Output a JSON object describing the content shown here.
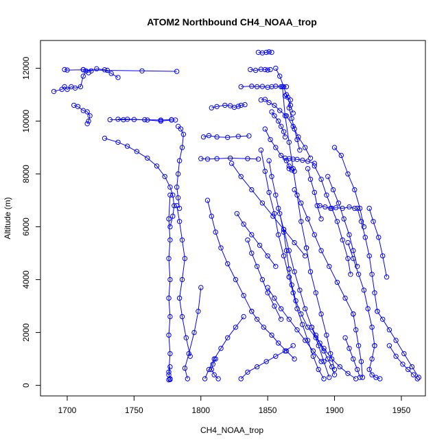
{
  "chart_data": {
    "type": "line",
    "title": "ATOM2 Northbound CH4_NOAA_trop",
    "xlabel": "CH4_NOAA_trop",
    "ylabel": "Altitude (m)",
    "xlim": [
      1680,
      1968
    ],
    "ylim": [
      -400,
      13050
    ],
    "xticks": [
      1700,
      1750,
      1800,
      1850,
      1900,
      1950
    ],
    "yticks": [
      0,
      2000,
      4000,
      6000,
      8000,
      10000,
      12000
    ],
    "xtick_labels": [
      "1700",
      "1750",
      "1800",
      "1850",
      "1900",
      "1950"
    ],
    "ytick_labels": [
      "0",
      "2000",
      "4000",
      "6000",
      "8000",
      "10000",
      "12000"
    ],
    "marker": "open-circle",
    "grid": false,
    "colors": {
      "series": "#0000ff",
      "frame": "#000000"
    },
    "series": [
      {
        "x": [
          1782,
          1756,
          1730,
          1712,
          1700,
          1698
        ],
        "y": [
          11880,
          11900,
          11920,
          11940,
          11930,
          11950
        ]
      },
      {
        "x": [
          1712,
          1718,
          1722,
          1728,
          1733,
          1738
        ],
        "y": [
          11950,
          11900,
          11980,
          11940,
          11800,
          11650
        ]
      },
      {
        "x": [
          1716,
          1714,
          1712,
          1710,
          1706,
          1703,
          1700,
          1698,
          1696,
          1690
        ],
        "y": [
          11830,
          11900,
          11700,
          11300,
          11250,
          11300,
          11200,
          11300,
          11200,
          11120
        ]
      },
      {
        "x": [
          1705,
          1708,
          1712,
          1715,
          1717,
          1716,
          1715
        ],
        "y": [
          10600,
          10550,
          10400,
          10350,
          10200,
          10000,
          9900
        ]
      },
      {
        "x": [
          1778,
          1770,
          1758,
          1745,
          1738
        ],
        "y": [
          10050,
          10040,
          10050,
          10070,
          10070
        ]
      },
      {
        "x": [
          1732,
          1742,
          1750,
          1760,
          1770,
          1778,
          1781
        ],
        "y": [
          10050,
          10050,
          10060,
          10040,
          10000,
          10040,
          10040
        ]
      },
      {
        "x": [
          1728,
          1738,
          1745,
          1752,
          1760,
          1767,
          1773,
          1777,
          1779,
          1780,
          1779,
          1777
        ],
        "y": [
          9350,
          9200,
          9050,
          8850,
          8600,
          8300,
          7900,
          7500,
          7200,
          6800,
          6400,
          6000
        ]
      },
      {
        "x": [
          1783,
          1785,
          1787,
          1786,
          1784,
          1783,
          1782,
          1783,
          1784
        ],
        "y": [
          9800,
          9700,
          9500,
          9000,
          8500,
          8000,
          7500,
          7100,
          6700
        ]
      },
      {
        "x": [
          1777,
          1776,
          1777,
          1776,
          1777,
          1776,
          1777,
          1776,
          1777,
          1776
        ],
        "y": [
          7200,
          6300,
          5500,
          4800,
          4000,
          3300,
          2600,
          1900,
          1200,
          500
        ]
      },
      {
        "x": [
          1777,
          1776,
          1777,
          1777,
          1776
        ],
        "y": [
          700,
          400,
          250,
          220,
          210
        ]
      },
      {
        "x": [
          1782,
          1784,
          1786,
          1788,
          1786,
          1784,
          1786,
          1789,
          1792
        ],
        "y": [
          6800,
          6200,
          5500,
          4800,
          4000,
          3300,
          2600,
          1800,
          1100
        ]
      },
      {
        "x": [
          1790,
          1788,
          1791,
          1795,
          1798,
          1800
        ],
        "y": [
          250,
          650,
          1200,
          2000,
          2800,
          3700
        ]
      },
      {
        "x": [
          1808,
          1812,
          1818,
          1822,
          1825,
          1828,
          1830,
          1833
        ],
        "y": [
          10500,
          10550,
          10600,
          10580,
          10520,
          10560,
          10600,
          10620
        ]
      },
      {
        "x": [
          1802,
          1806,
          1812,
          1820,
          1828,
          1836
        ],
        "y": [
          9400,
          9450,
          9400,
          9380,
          9420,
          9440
        ]
      },
      {
        "x": [
          1800,
          1805,
          1812,
          1822,
          1835,
          1843
        ],
        "y": [
          8580,
          8560,
          8580,
          8600,
          8580,
          8560
        ]
      },
      {
        "x": [
          1830,
          1838,
          1842,
          1846,
          1850,
          1853,
          1856,
          1860,
          1864
        ],
        "y": [
          11300,
          11320,
          11300,
          11310,
          11280,
          11300,
          11320,
          11300,
          11300
        ]
      },
      {
        "x": [
          1837,
          1841,
          1845,
          1848,
          1850,
          1852
        ],
        "y": [
          11950,
          11920,
          11960,
          11950,
          11930,
          11950
        ]
      },
      {
        "x": [
          1843,
          1846,
          1849,
          1851,
          1853
        ],
        "y": [
          12600,
          12580,
          12600,
          12620,
          12600
        ]
      },
      {
        "x": [
          1845,
          1848,
          1851,
          1855,
          1859,
          1864,
          1869,
          1873,
          1878,
          1882
        ],
        "y": [
          10800,
          10820,
          10700,
          10600,
          10400,
          10200,
          9800,
          9400,
          9000,
          8600
        ]
      },
      {
        "x": [
          1848,
          1852,
          1856,
          1860,
          1864,
          1866,
          1866,
          1868,
          1870
        ],
        "y": [
          9700,
          9300,
          9000,
          8700,
          8500,
          8300,
          8200,
          8150,
          8100
        ]
      },
      {
        "x": [
          1863,
          1866,
          1869,
          1872,
          1876,
          1880,
          1885
        ],
        "y": [
          8600,
          8580,
          8560,
          8550,
          8520,
          8480,
          8400
        ]
      },
      {
        "x": [
          1851,
          1853,
          1856,
          1859,
          1862,
          1864,
          1866
        ],
        "y": [
          8500,
          7900,
          7200,
          6500,
          5800,
          5100,
          4400
        ]
      },
      {
        "x": [
          1866,
          1868,
          1871,
          1875,
          1880,
          1886,
          1892,
          1898,
          1904,
          1910,
          1916
        ],
        "y": [
          4400,
          3800,
          3200,
          2700,
          2200,
          1800,
          1400,
          1000,
          700,
          450,
          250
        ]
      },
      {
        "x": [
          1858,
          1862,
          1866,
          1870,
          1874,
          1878,
          1883,
          1888,
          1892,
          1896
        ],
        "y": [
          6700,
          5900,
          5100,
          4300,
          3600,
          2900,
          2200,
          1500,
          900,
          300
        ]
      },
      {
        "x": [
          1861,
          1863,
          1866,
          1869,
          1872,
          1875,
          1879
        ],
        "y": [
          11300,
          10200,
          9200,
          8200,
          7200,
          6200,
          5200
        ]
      },
      {
        "x": [
          1879,
          1882,
          1886,
          1890,
          1894,
          1897,
          1900
        ],
        "y": [
          5200,
          4300,
          3500,
          2700,
          1900,
          1200,
          600
        ]
      },
      {
        "x": [
          1885,
          1890,
          1894,
          1898,
          1902,
          1906,
          1910,
          1912
        ],
        "y": [
          8300,
          7800,
          7200,
          6700,
          6200,
          5500,
          4800,
          4200
        ]
      },
      {
        "x": [
          1889,
          1893,
          1897,
          1901,
          1906,
          1911,
          1915
        ],
        "y": [
          6800,
          6750,
          6700,
          6720,
          6700,
          6750,
          6700
        ]
      },
      {
        "x": [
          1900,
          1905,
          1910,
          1915,
          1919,
          1922
        ],
        "y": [
          9000,
          8700,
          8000,
          7400,
          6700,
          6000
        ]
      },
      {
        "x": [
          1917,
          1920,
          1923,
          1926,
          1928,
          1930,
          1932
        ],
        "y": [
          6700,
          6200,
          5600,
          4900,
          4200,
          3500,
          2800
        ]
      },
      {
        "x": [
          1932,
          1936,
          1941,
          1946,
          1952,
          1958,
          1963
        ],
        "y": [
          2800,
          2500,
          2100,
          1700,
          1200,
          700,
          300
        ]
      },
      {
        "x": [
          1926,
          1929,
          1933,
          1936,
          1939
        ],
        "y": [
          6700,
          6200,
          5600,
          4900,
          4100
        ]
      },
      {
        "x": [
          1910,
          1914,
          1918,
          1922,
          1925,
          1928,
          1930
        ],
        "y": [
          5400,
          4800,
          4200,
          3600,
          2900,
          2200,
          1500
        ]
      },
      {
        "x": [
          1930,
          1928,
          1926,
          1928,
          1931,
          1934
        ],
        "y": [
          1500,
          1000,
          600,
          400,
          300,
          250
        ]
      },
      {
        "x": [
          1823,
          1830,
          1838,
          1846,
          1854,
          1862,
          1870,
          1878
        ],
        "y": [
          8400,
          7900,
          7400,
          6900,
          6400,
          5900,
          5400,
          4900
        ]
      },
      {
        "x": [
          1805,
          1808,
          1811,
          1815,
          1820,
          1826,
          1832,
          1838
        ],
        "y": [
          7000,
          6400,
          5800,
          5200,
          4600,
          4000,
          3400,
          2800
        ]
      },
      {
        "x": [
          1838,
          1842,
          1847,
          1853,
          1858,
          1864,
          1870
        ],
        "y": [
          2800,
          2500,
          2200,
          1900,
          1600,
          1300,
          1000
        ]
      },
      {
        "x": [
          1803,
          1806,
          1810,
          1815,
          1820,
          1826,
          1832
        ],
        "y": [
          250,
          600,
          1000,
          1400,
          1800,
          2200,
          2600
        ]
      },
      {
        "x": [
          1830,
          1835,
          1842,
          1849,
          1856,
          1863,
          1869
        ],
        "y": [
          250,
          500,
          700,
          900,
          1100,
          1300,
          1500
        ]
      },
      {
        "x": [
          1845,
          1848,
          1851,
          1855,
          1858,
          1862,
          1866
        ],
        "y": [
          8900,
          8100,
          7300,
          6500,
          5700,
          4900,
          4100
        ]
      },
      {
        "x": [
          1866,
          1869,
          1872,
          1876,
          1880,
          1884,
          1888,
          1892
        ],
        "y": [
          4100,
          3500,
          2900,
          2300,
          1700,
          1100,
          600,
          250
        ]
      },
      {
        "x": [
          1870,
          1875,
          1880,
          1885,
          1890,
          1896,
          1902,
          1908,
          1914
        ],
        "y": [
          7400,
          6900,
          6300,
          5700,
          5100,
          4500,
          3900,
          3300,
          2700
        ]
      },
      {
        "x": [
          1914,
          1916,
          1918,
          1920,
          1921
        ],
        "y": [
          2700,
          2100,
          1500,
          900,
          300
        ]
      },
      {
        "x": [
          1850,
          1855,
          1860,
          1866,
          1872,
          1878,
          1884,
          1890
        ],
        "y": [
          3700,
          3300,
          2900,
          2500,
          2100,
          1700,
          1300,
          900
        ]
      },
      {
        "x": [
          1811,
          1809,
          1808,
          1810,
          1813
        ],
        "y": [
          1000,
          800,
          600,
          400,
          250
        ]
      },
      {
        "x": [
          1863,
          1865,
          1867,
          1866,
          1868,
          1870,
          1872,
          1874
        ],
        "y": [
          10950,
          10900,
          10800,
          10500,
          10100,
          9700,
          9300,
          8900
        ]
      },
      {
        "x": [
          1856,
          1859,
          1862,
          1864,
          1867,
          1869
        ],
        "y": [
          12000,
          11700,
          11300,
          11000,
          10600,
          10300
        ]
      },
      {
        "x": [
          1853,
          1855,
          1858,
          1860,
          1862,
          1863
        ],
        "y": [
          10350,
          10200,
          10000,
          9800,
          9600,
          9400
        ]
      },
      {
        "x": [
          1883,
          1886,
          1889,
          1892,
          1895,
          1898,
          1900
        ],
        "y": [
          2200,
          1900,
          1600,
          1300,
          1000,
          700,
          400
        ]
      },
      {
        "x": [
          1908,
          1911,
          1914,
          1917,
          1919
        ],
        "y": [
          1800,
          1400,
          1000,
          600,
          300
        ]
      },
      {
        "x": [
          1941,
          1946,
          1951,
          1955,
          1959,
          1962
        ],
        "y": [
          1500,
          1100,
          800,
          600,
          400,
          250
        ]
      },
      {
        "x": [
          1835,
          1838,
          1842,
          1846,
          1850,
          1855,
          1860
        ],
        "y": [
          5500,
          5000,
          4500,
          4000,
          3500,
          3000,
          2500
        ]
      },
      {
        "x": [
          1827,
          1832,
          1838,
          1844,
          1850,
          1856
        ],
        "y": [
          6500,
          6100,
          5700,
          5300,
          4900,
          4500
        ]
      },
      {
        "x": [
          1880,
          1882,
          1885,
          1887,
          1890
        ],
        "y": [
          8200,
          7800,
          7300,
          6800,
          6300
        ]
      },
      {
        "x": [
          1895,
          1899,
          1903,
          1907,
          1911,
          1914,
          1917
        ],
        "y": [
          7900,
          7400,
          6900,
          6300,
          5700,
          5100,
          4500
        ]
      }
    ]
  }
}
